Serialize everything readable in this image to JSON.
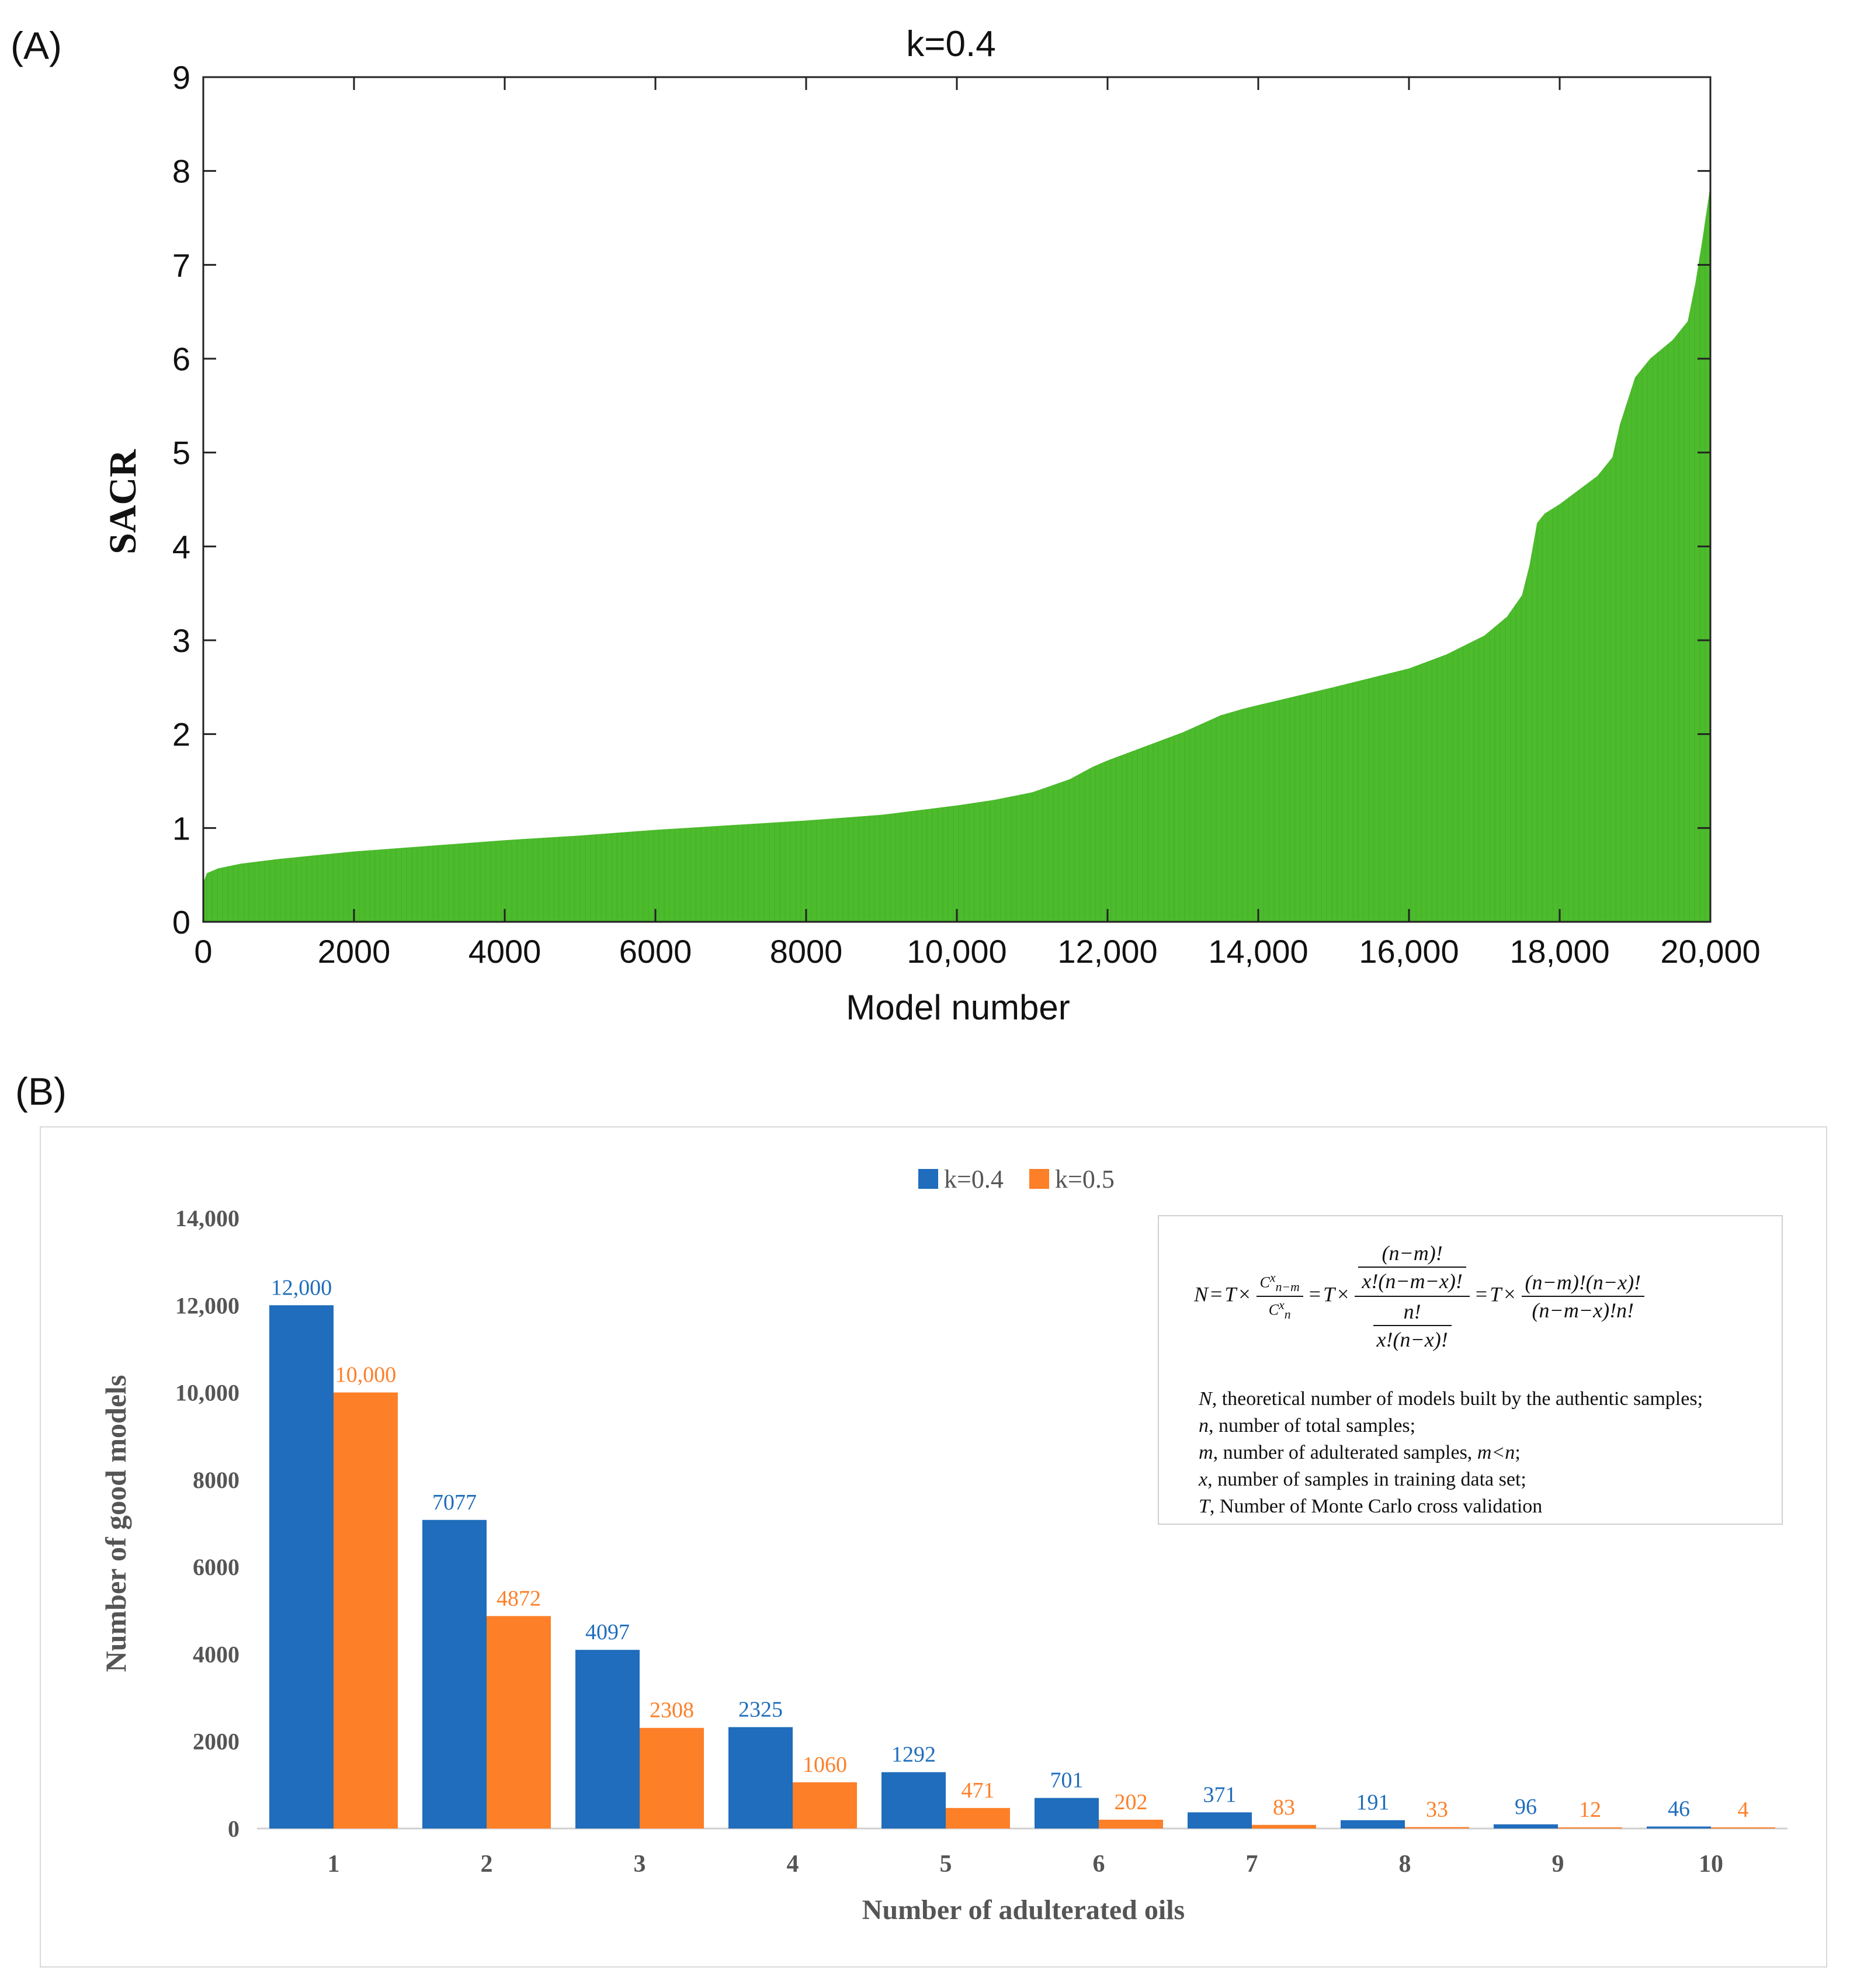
{
  "panel_a_label": "(A)",
  "panel_b_label": "(B)",
  "chart_data": [
    {
      "type": "area",
      "title": "k=0.4",
      "xlabel": "Model number",
      "ylabel": "SACR",
      "xlim": [
        0,
        20000
      ],
      "ylim": [
        0,
        9
      ],
      "xticks": [
        0,
        2000,
        4000,
        6000,
        8000,
        10000,
        12000,
        14000,
        16000,
        18000,
        20000
      ],
      "xtick_labels": [
        "0",
        "2000",
        "4000",
        "6000",
        "8000",
        "10,000",
        "12,000",
        "14,000",
        "16,000",
        "18,000",
        "20,000"
      ],
      "yticks": [
        0,
        1,
        2,
        3,
        4,
        5,
        6,
        7,
        8,
        9
      ],
      "ytick_labels": [
        "0",
        "1",
        "2",
        "3",
        "4",
        "5",
        "6",
        "7",
        "8",
        "9"
      ],
      "color": "#4cbb2c",
      "x": [
        0,
        50,
        200,
        500,
        1000,
        2000,
        3000,
        4000,
        5000,
        6000,
        7000,
        8000,
        9000,
        10000,
        10500,
        11000,
        11500,
        11800,
        12000,
        13000,
        13500,
        13800,
        14000,
        15000,
        16000,
        16500,
        17000,
        17300,
        17500,
        17600,
        17700,
        17800,
        18000,
        18500,
        18700,
        18800,
        19000,
        19200,
        19500,
        19700,
        19800,
        19900,
        20000
      ],
      "y": [
        0.42,
        0.52,
        0.57,
        0.62,
        0.67,
        0.75,
        0.81,
        0.87,
        0.92,
        0.98,
        1.03,
        1.08,
        1.14,
        1.24,
        1.3,
        1.38,
        1.52,
        1.65,
        1.72,
        2.02,
        2.2,
        2.27,
        2.31,
        2.5,
        2.7,
        2.85,
        3.05,
        3.25,
        3.48,
        3.8,
        4.25,
        4.35,
        4.45,
        4.75,
        4.95,
        5.3,
        5.8,
        6.0,
        6.2,
        6.4,
        6.8,
        7.3,
        7.85
      ]
    },
    {
      "type": "bar",
      "title": "",
      "xlabel": "Number of adulterated oils",
      "ylabel": "Number of good models",
      "ylim": [
        0,
        14000
      ],
      "yticks": [
        0,
        2000,
        4000,
        6000,
        8000,
        10000,
        12000,
        14000
      ],
      "ytick_labels": [
        "0",
        "2000",
        "4000",
        "6000",
        "8000",
        "10,000",
        "12,000",
        "14,000"
      ],
      "categories": [
        "1",
        "2",
        "3",
        "4",
        "5",
        "6",
        "7",
        "8",
        "9",
        "10"
      ],
      "series": [
        {
          "name": "k=0.4",
          "color": "#1f6dbc",
          "values": [
            12000,
            7077,
            4097,
            2325,
            1292,
            701,
            371,
            191,
            96,
            46
          ],
          "labels": [
            "12,000",
            "7077",
            "4097",
            "2325",
            "1292",
            "701",
            "371",
            "191",
            "96",
            "46"
          ]
        },
        {
          "name": "k=0.5",
          "color": "#fd7f28",
          "values": [
            10000,
            4872,
            2308,
            1060,
            471,
            202,
            83,
            33,
            12,
            4
          ],
          "labels": [
            "10,000",
            "4872",
            "2308",
            "1060",
            "471",
            "202",
            "83",
            "33",
            "12",
            "4"
          ]
        }
      ],
      "legend": "top-center"
    }
  ],
  "formula": {
    "lhs": "N",
    "t": "T",
    "times": "×",
    "eq": "=",
    "c1": "C",
    "c1_sup": "x",
    "c1_sub": "n−m",
    "c2": "C",
    "c2_sup": "x",
    "c2_sub": "n",
    "f1_num_num": "(n−m)!",
    "f1_num_den": "x!(n−m−x)!",
    "f1_den_num": "n!",
    "f1_den_den": "x!(n−x)!",
    "f2_num": "(n−m)!(n−x)!",
    "f2_den": "(n−m−x)!n!"
  },
  "definitions": [
    {
      "symbol": "N",
      "text": ", theoretical number of models built by the authentic samples;"
    },
    {
      "symbol": "n",
      "text": ", number of total samples;"
    },
    {
      "symbol": "m",
      "text": ", number of adulterated samples, ",
      "extra_sym": "m<n",
      "extra_tail": ";"
    },
    {
      "symbol": "x",
      "text": ", number of samples in training data set;"
    },
    {
      "symbol": "T",
      "text": ", Number of Monte Carlo cross validation"
    }
  ]
}
